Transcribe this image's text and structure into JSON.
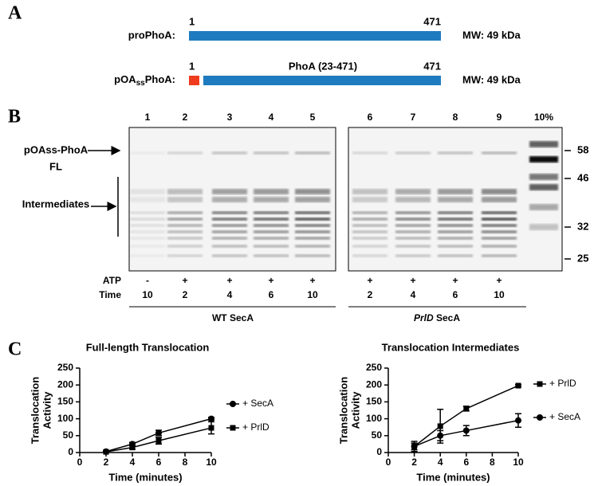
{
  "panel_a": {
    "letter": "A",
    "constructs": [
      {
        "name": [
          "proPhoA:"
        ],
        "start": "1",
        "end": "471",
        "mw": "MW: 49 kDa"
      },
      {
        "name": [
          "pOA",
          "ss",
          "PhoA:"
        ],
        "start": "1",
        "end": "471",
        "mw": "MW: 49 kDa",
        "domain": "PhoA (23-471)"
      }
    ]
  },
  "panel_b": {
    "letter": "B",
    "lanes": [
      "1",
      "2",
      "3",
      "4",
      "5",
      "6",
      "7",
      "8",
      "9",
      "10%"
    ],
    "markers": [
      "58",
      "46",
      "32",
      "25"
    ],
    "left_labels": [
      "pOAss-PhoA",
      "FL",
      "Intermediates"
    ],
    "row_labels": [
      "ATP",
      "Time"
    ],
    "atp": [
      "-",
      "+",
      "+",
      "+",
      "+",
      "+",
      "+",
      "+",
      "+"
    ],
    "time": [
      10,
      2,
      4,
      6,
      10,
      2,
      4,
      6,
      10
    ],
    "groups": [
      [
        "WT SecA"
      ],
      [
        "PrlD",
        " SecA"
      ]
    ]
  },
  "panel_c": {
    "letter": "C"
  },
  "chart_data": [
    {
      "type": "line",
      "title": "Full-length Translocation",
      "xlabel": "Time (minutes)",
      "ylabel": [
        "Translocation",
        "Activity"
      ],
      "x": [
        2,
        4,
        6,
        10
      ],
      "xlim": [
        0,
        10
      ],
      "xticks": [
        0,
        2,
        4,
        6,
        8,
        10
      ],
      "ylim": [
        0,
        250
      ],
      "yticks": [
        0,
        50,
        100,
        150,
        200,
        250
      ],
      "legend": "right",
      "series": [
        {
          "name": "+ SecA",
          "color": "#000000",
          "marker": "circle",
          "values": [
            3,
            25,
            58,
            100
          ],
          "errors": [
            2,
            5,
            8,
            4
          ]
        },
        {
          "name": "+ PrlD",
          "color": "#000000",
          "marker": "square",
          "values": [
            2,
            15,
            35,
            73
          ],
          "errors": [
            2,
            5,
            10,
            18
          ]
        }
      ]
    },
    {
      "type": "line",
      "title": "Translocation Intermediates",
      "xlabel": "Time (minutes)",
      "ylabel": [
        "Translocation",
        "Activity"
      ],
      "x": [
        2,
        4,
        6,
        10
      ],
      "xlim": [
        0,
        10
      ],
      "xticks": [
        0,
        2,
        4,
        6,
        8,
        10
      ],
      "ylim": [
        0,
        250
      ],
      "yticks": [
        0,
        50,
        100,
        150,
        200,
        250
      ],
      "legend": "right",
      "series": [
        {
          "name": "+ PrlD",
          "color": "#000000",
          "marker": "square",
          "values": [
            18,
            78,
            130,
            198
          ],
          "errors": [
            15,
            50,
            7,
            3
          ]
        },
        {
          "name": "+ SecA",
          "color": "#000000",
          "marker": "circle",
          "values": [
            18,
            50,
            65,
            95
          ],
          "errors": [
            10,
            15,
            15,
            20
          ]
        }
      ]
    }
  ]
}
